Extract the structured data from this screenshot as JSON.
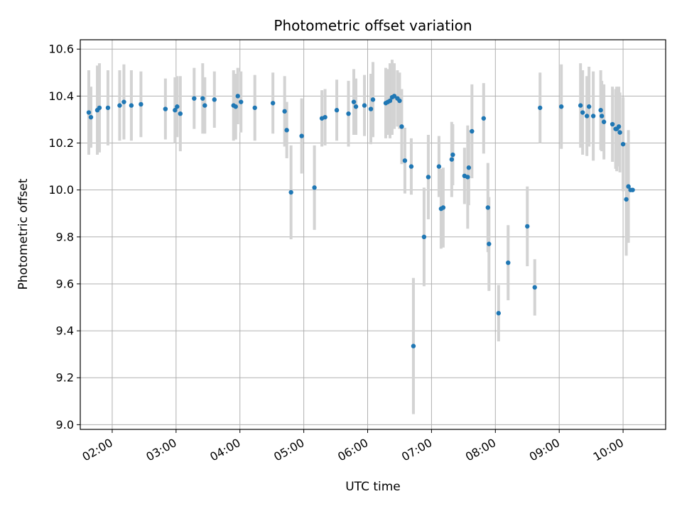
{
  "chart_data": {
    "type": "scatter",
    "title": "Photometric offset variation",
    "xlabel": "UTC time",
    "ylabel": "Photometric offset",
    "ylim": [
      8.98,
      10.64
    ],
    "xlim": [
      "01:30",
      "10:40"
    ],
    "grid": true,
    "x_tick_labels": [
      "02:00",
      "03:00",
      "04:00",
      "05:00",
      "06:00",
      "07:00",
      "08:00",
      "09:00",
      "10:00"
    ],
    "y_tick_labels": [
      "9.0",
      "9.2",
      "9.4",
      "9.6",
      "9.8",
      "10.0",
      "10.2",
      "10.4",
      "10.6"
    ],
    "colors": {
      "points": "#1f77b4",
      "errorbars": "#d3d3d3",
      "grid": "#b0b0b0"
    },
    "series": [
      {
        "x": [
          "01:38",
          "01:40",
          "01:46",
          "01:48",
          "01:56",
          "02:07",
          "02:11",
          "02:18",
          "02:27",
          "02:50",
          "02:59",
          "03:01",
          "03:04",
          "03:17",
          "03:25",
          "03:27",
          "03:36",
          "03:54",
          "03:56",
          "03:58",
          "04:01",
          "04:14",
          "04:31",
          "04:42",
          "04:44",
          "04:48",
          "04:58",
          "05:10",
          "05:17",
          "05:20",
          "05:31",
          "05:42",
          "05:47",
          "05:49",
          "05:57",
          "06:03",
          "06:05",
          "06:17",
          "06:19",
          "06:21",
          "06:23",
          "06:25",
          "06:28",
          "06:30",
          "06:32",
          "06:35",
          "06:41",
          "06:43",
          "06:53",
          "06:57",
          "07:07",
          "07:09",
          "07:11",
          "07:19",
          "07:20",
          "07:31",
          "07:34",
          "07:35",
          "07:38",
          "07:49",
          "07:53",
          "07:54",
          "08:03",
          "08:12",
          "08:30",
          "08:37",
          "08:42",
          "09:02",
          "09:20",
          "09:22",
          "09:26",
          "09:28",
          "09:32",
          "09:39",
          "09:40",
          "09:42",
          "09:50",
          "09:53",
          "09:54",
          "09:56",
          "09:57",
          "10:00",
          "10:03",
          "10:05",
          "10:07",
          "10:09"
        ],
        "y": [
          10.33,
          10.31,
          10.34,
          10.35,
          10.35,
          10.36,
          10.375,
          10.36,
          10.365,
          10.345,
          10.34,
          10.355,
          10.325,
          10.39,
          10.39,
          10.36,
          10.385,
          10.36,
          10.355,
          10.4,
          10.375,
          10.35,
          10.37,
          10.335,
          10.255,
          9.99,
          10.23,
          10.01,
          10.305,
          10.31,
          10.34,
          10.325,
          10.375,
          10.355,
          10.36,
          10.345,
          10.385,
          10.37,
          10.375,
          10.38,
          10.395,
          10.4,
          10.39,
          10.38,
          10.27,
          10.125,
          10.1,
          9.335,
          9.8,
          10.055,
          10.1,
          9.92,
          9.925,
          10.13,
          10.15,
          10.06,
          10.055,
          10.095,
          10.25,
          10.305,
          9.925,
          9.77,
          9.475,
          9.69,
          9.845,
          9.585,
          10.35,
          10.355,
          10.36,
          10.33,
          10.315,
          10.355,
          10.315,
          10.34,
          10.315,
          10.29,
          10.28,
          10.26,
          10.26,
          10.27,
          10.245,
          10.195,
          9.96,
          10.015,
          10.0,
          10.0
        ],
        "yerr": [
          0.18,
          0.13,
          0.19,
          0.19,
          0.16,
          0.15,
          0.16,
          0.15,
          0.14,
          0.13,
          0.14,
          0.13,
          0.16,
          0.13,
          0.15,
          0.12,
          0.12,
          0.15,
          0.14,
          0.12,
          0.13,
          0.14,
          0.13,
          0.15,
          0.12,
          0.2,
          0.16,
          0.18,
          0.12,
          0.12,
          0.13,
          0.14,
          0.14,
          0.12,
          0.13,
          0.15,
          0.16,
          0.15,
          0.14,
          0.16,
          0.16,
          0.14,
          0.12,
          0.12,
          0.16,
          0.14,
          0.12,
          0.29,
          0.21,
          0.18,
          0.13,
          0.17,
          0.17,
          0.16,
          0.13,
          0.12,
          0.22,
          0.16,
          0.2,
          0.15,
          0.19,
          0.2,
          0.12,
          0.16,
          0.17,
          0.12,
          0.15,
          0.18,
          0.18,
          0.18,
          0.17,
          0.17,
          0.19,
          0.17,
          0.15,
          0.16,
          0.16,
          0.17,
          0.18,
          0.17,
          0.17,
          0.2,
          0.24,
          0.24,
          0.0,
          0.0
        ]
      }
    ]
  }
}
